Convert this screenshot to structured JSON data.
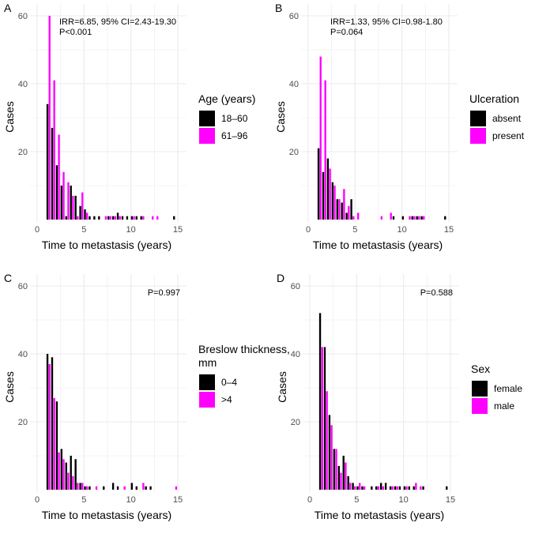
{
  "chart_data": [
    {
      "type": "bar",
      "panel": "A",
      "xlabel": "Time to metastasis (years)",
      "ylabel": "Cases",
      "xlim": [
        0,
        15
      ],
      "ylim": [
        0,
        60
      ],
      "xticks": [
        "0",
        "5",
        "10",
        "15"
      ],
      "yticks": [
        "20",
        "40",
        "60"
      ],
      "annotation": [
        "IRR=6.85, 95% CI=2.43-19.30",
        "P<0.001"
      ],
      "legend_title": [
        "Age (years)"
      ],
      "series": [
        {
          "name": "18–60",
          "color": "#000000",
          "values": [
            34,
            27,
            16,
            10,
            1,
            10,
            7,
            4,
            3,
            1,
            1,
            1,
            0,
            1,
            1,
            2,
            1,
            1,
            1,
            1,
            1,
            0,
            0,
            0,
            0,
            0,
            0,
            1
          ]
        },
        {
          "name": "61–96",
          "color": "#ff00ff",
          "values": [
            60,
            41,
            25,
            14,
            11,
            7,
            1,
            8,
            2,
            0,
            0,
            0,
            1,
            1,
            1,
            1,
            0,
            0,
            1,
            0,
            1,
            0,
            1,
            1,
            0,
            0,
            0,
            0
          ]
        }
      ]
    },
    {
      "type": "bar",
      "panel": "B",
      "xlabel": "Time to metastasis (years)",
      "ylabel": "Cases",
      "xlim": [
        0,
        15
      ],
      "ylim": [
        0,
        60
      ],
      "xticks": [
        "0",
        "5",
        "10",
        "15"
      ],
      "yticks": [
        "20",
        "40",
        "60"
      ],
      "annotation": [
        "IRR=1.33, 95% CI=0.98-1.80",
        "P=0.064"
      ],
      "legend_title": [
        "Ulceration"
      ],
      "series": [
        {
          "name": "absent",
          "color": "#000000",
          "values": [
            21,
            14,
            18,
            11,
            6,
            5,
            2,
            6,
            0,
            0,
            0,
            0,
            0,
            0,
            0,
            0,
            1,
            0,
            1,
            0,
            1,
            1,
            1,
            0,
            0,
            0,
            0,
            1
          ]
        },
        {
          "name": "present",
          "color": "#ff00ff",
          "values": [
            48,
            41,
            15,
            10,
            6,
            9,
            4,
            1,
            2,
            0,
            0,
            0,
            0,
            1,
            0,
            2,
            0,
            0,
            0,
            1,
            1,
            1,
            1,
            0,
            0,
            0,
            0,
            0
          ]
        }
      ]
    },
    {
      "type": "bar",
      "panel": "C",
      "xlabel": "Time to metastasis (years)",
      "ylabel": "Cases",
      "xlim": [
        0,
        15
      ],
      "ylim": [
        0,
        60
      ],
      "xticks": [
        "0",
        "5",
        "10",
        "15"
      ],
      "yticks": [
        "20",
        "40",
        "60"
      ],
      "annotation": [
        "P=0.997"
      ],
      "legend_title": [
        "Breslow thickness,",
        "mm"
      ],
      "series": [
        {
          "name": "0–4",
          "color": "#000000",
          "values": [
            40,
            39,
            26,
            12,
            8,
            10,
            9,
            2,
            1,
            1,
            0,
            0,
            1,
            0,
            2,
            1,
            0,
            0,
            2,
            1,
            0,
            1,
            1,
            0,
            0,
            0,
            0,
            0
          ]
        },
        {
          "name": ">4",
          "color": "#ff00ff",
          "values": [
            37,
            27,
            11,
            9,
            5,
            4,
            2,
            2,
            1,
            0,
            1,
            0,
            0,
            0,
            0,
            0,
            1,
            0,
            0,
            0,
            2,
            0,
            0,
            0,
            0,
            0,
            0,
            1
          ]
        }
      ]
    },
    {
      "type": "bar",
      "panel": "D",
      "xlabel": "Time to metastasis (years)",
      "ylabel": "Cases",
      "xlim": [
        0,
        15
      ],
      "ylim": [
        0,
        60
      ],
      "xticks": [
        "0",
        "5",
        "10",
        "15"
      ],
      "yticks": [
        "20",
        "40",
        "60"
      ],
      "annotation": [
        "P=0.588"
      ],
      "legend_title": [
        "Sex"
      ],
      "series": [
        {
          "name": "female",
          "color": "#000000",
          "values": [
            52,
            42,
            22,
            12,
            7,
            10,
            4,
            2,
            1,
            1,
            0,
            1,
            1,
            2,
            2,
            1,
            1,
            1,
            1,
            1,
            1,
            0,
            1,
            0,
            0,
            0,
            0,
            1
          ]
        },
        {
          "name": "male",
          "color": "#ff00ff",
          "values": [
            42,
            29,
            19,
            12,
            5,
            8,
            2,
            1,
            2,
            1,
            0,
            0,
            1,
            1,
            0,
            1,
            1,
            0,
            1,
            0,
            2,
            1,
            0,
            0,
            0,
            0,
            0,
            0
          ]
        }
      ]
    }
  ],
  "bin_start": 1,
  "bin_width": 0.5
}
